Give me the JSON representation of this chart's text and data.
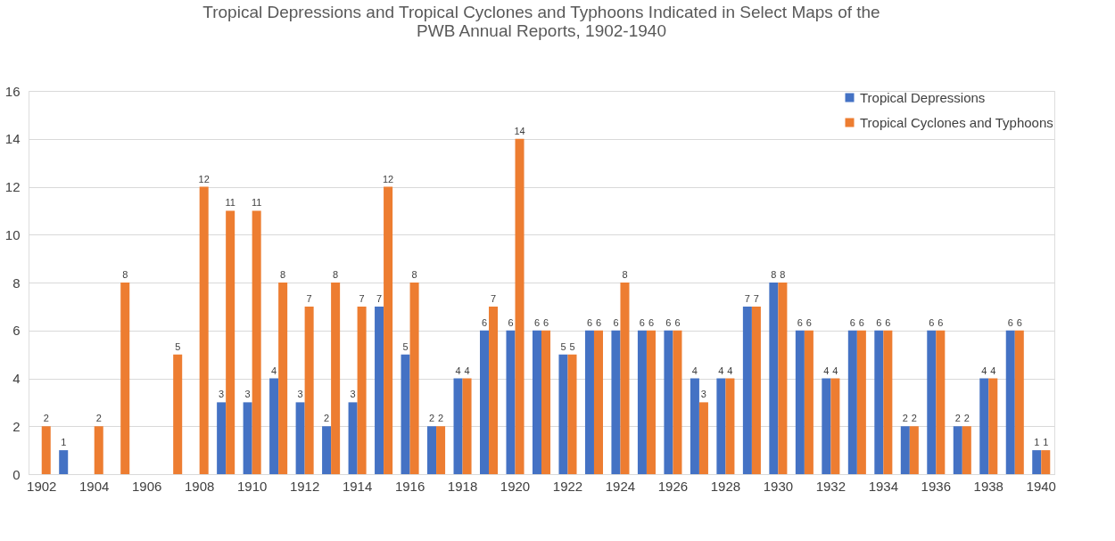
{
  "chart_data": {
    "type": "bar",
    "title": "Tropical Depressions and Tropical Cyclones and Typhoons Indicated in Select Maps of the PWB Annual Reports, 1902-1940",
    "categories": [
      "1902",
      null,
      "1904",
      null,
      "1906",
      null,
      "1908",
      null,
      "1910",
      null,
      "1912",
      null,
      "1914",
      null,
      "1916",
      null,
      "1918",
      null,
      "1920",
      null,
      "1922",
      null,
      "1924",
      null,
      "1926",
      null,
      "1928",
      null,
      "1930",
      null,
      "1932",
      null,
      "1934",
      null,
      "1936",
      null,
      "1938",
      null,
      "1940"
    ],
    "series": [
      {
        "name": "Tropical Depressions",
        "color": "#4472c4",
        "values": [
          null,
          1,
          null,
          null,
          null,
          null,
          null,
          3,
          3,
          4,
          3,
          2,
          3,
          7,
          5,
          2,
          4,
          6,
          6,
          6,
          5,
          6,
          6,
          6,
          6,
          4,
          4,
          7,
          8,
          6,
          4,
          6,
          6,
          2,
          6,
          2,
          4,
          6,
          1
        ]
      },
      {
        "name": "Tropical Cyclones and Typhoons",
        "color": "#ed7d31",
        "values": [
          2,
          null,
          2,
          8,
          null,
          5,
          12,
          11,
          11,
          8,
          7,
          8,
          7,
          12,
          8,
          2,
          4,
          7,
          14,
          6,
          5,
          6,
          8,
          6,
          6,
          3,
          4,
          7,
          8,
          6,
          4,
          6,
          6,
          2,
          6,
          2,
          4,
          6,
          1
        ]
      }
    ],
    "ylim": [
      0,
      16
    ],
    "yticks": [
      0,
      2,
      4,
      6,
      8,
      10,
      12,
      14,
      16
    ],
    "grid": "y",
    "legend": "top right",
    "data_labels": true
  }
}
